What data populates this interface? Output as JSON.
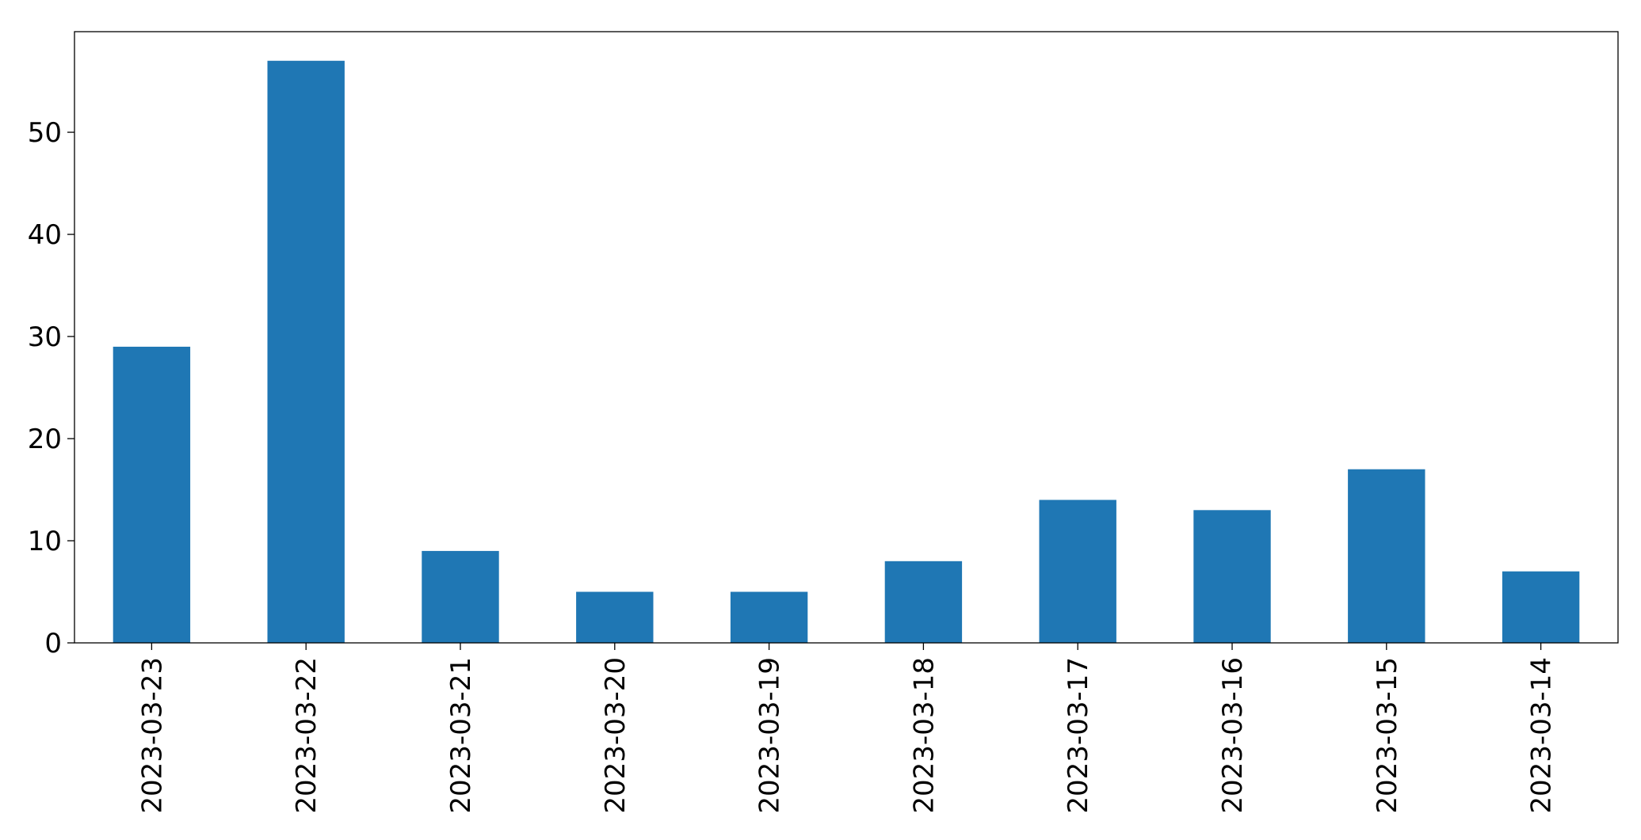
{
  "chart_data": {
    "type": "bar",
    "categories": [
      "2023-03-23",
      "2023-03-22",
      "2023-03-21",
      "2023-03-20",
      "2023-03-19",
      "2023-03-18",
      "2023-03-17",
      "2023-03-16",
      "2023-03-15",
      "2023-03-14"
    ],
    "values": [
      29,
      57,
      9,
      5,
      5,
      8,
      14,
      13,
      17,
      7
    ],
    "color": "#1f77b4",
    "ylim": [
      0,
      59.85
    ],
    "yticks": [
      0,
      10,
      20,
      30,
      40,
      50
    ],
    "grid": false
  }
}
